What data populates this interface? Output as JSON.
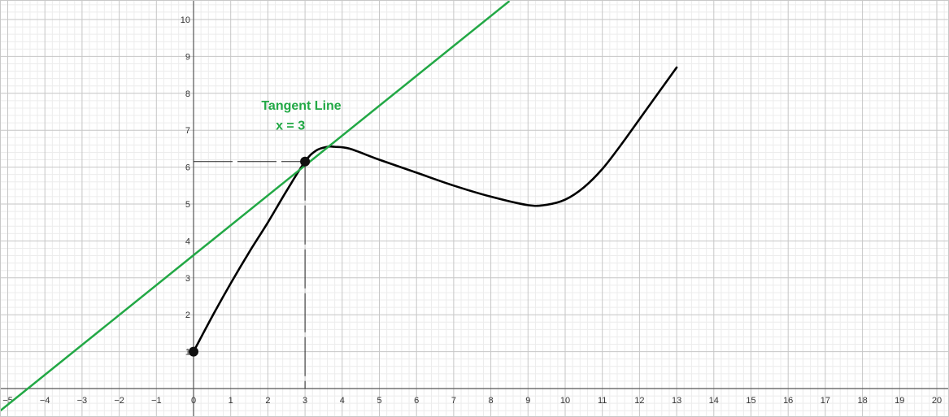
{
  "chart_data": {
    "type": "line",
    "title": "",
    "xlabel": "",
    "ylabel": "",
    "xlim": [
      -5.2,
      20.3
    ],
    "ylim": [
      -0.8,
      10.5
    ],
    "grid": true,
    "x_ticks": [
      "−5",
      "−4",
      "−3",
      "−2",
      "−1",
      "0",
      "1",
      "2",
      "3",
      "4",
      "6",
      "5",
      "7",
      "8",
      "9",
      "10",
      "11",
      "12",
      "13",
      "14",
      "15",
      "16",
      "17",
      "18",
      "19",
      "20"
    ],
    "x_tick_values": [
      -5,
      -4,
      -3,
      -2,
      -1,
      0,
      1,
      2,
      3,
      4,
      6,
      5,
      7,
      8,
      9,
      10,
      11,
      12,
      13,
      14,
      15,
      16,
      17,
      18,
      19,
      20
    ],
    "y_ticks": [
      "1",
      "2",
      "3",
      "4",
      "5",
      "6",
      "7",
      "8",
      "9",
      "10"
    ],
    "y_tick_values": [
      1,
      2,
      3,
      4,
      5,
      6,
      7,
      8,
      9,
      10
    ],
    "series": [
      {
        "kind": "curve",
        "color": "#000000",
        "x": [
          0,
          0.5,
          1,
          1.5,
          2,
          2.5,
          3,
          3.3,
          3.6,
          3.8,
          4.2,
          5,
          6,
          7,
          8,
          9,
          9.5,
          10,
          10.5,
          11,
          11.5,
          12,
          12.5,
          13
        ],
        "y": [
          1.0,
          1.95,
          2.85,
          3.7,
          4.5,
          5.35,
          6.15,
          6.45,
          6.55,
          6.55,
          6.5,
          6.2,
          5.85,
          5.5,
          5.2,
          4.97,
          4.98,
          5.12,
          5.45,
          5.95,
          6.6,
          7.3,
          8.0,
          8.7
        ]
      },
      {
        "kind": "tangent-line",
        "color": "#22a845",
        "x": [
          -5.2,
          8.5
        ],
        "y": [
          -0.6,
          10.5
        ]
      }
    ],
    "points": [
      {
        "x": 0,
        "y": 1.0
      },
      {
        "x": 3,
        "y": 6.15
      }
    ],
    "guides": [
      {
        "from": [
          0,
          6.15
        ],
        "to": [
          3,
          6.15
        ]
      },
      {
        "from": [
          3,
          6.15
        ],
        "to": [
          3,
          0
        ]
      }
    ],
    "annotations": [
      {
        "text": "Tangent Line",
        "x": 2.9,
        "y": 7.55,
        "color": "#22a845"
      },
      {
        "text": "x = 3",
        "x": 3.0,
        "y": 7.02,
        "color": "#22a845"
      }
    ]
  }
}
